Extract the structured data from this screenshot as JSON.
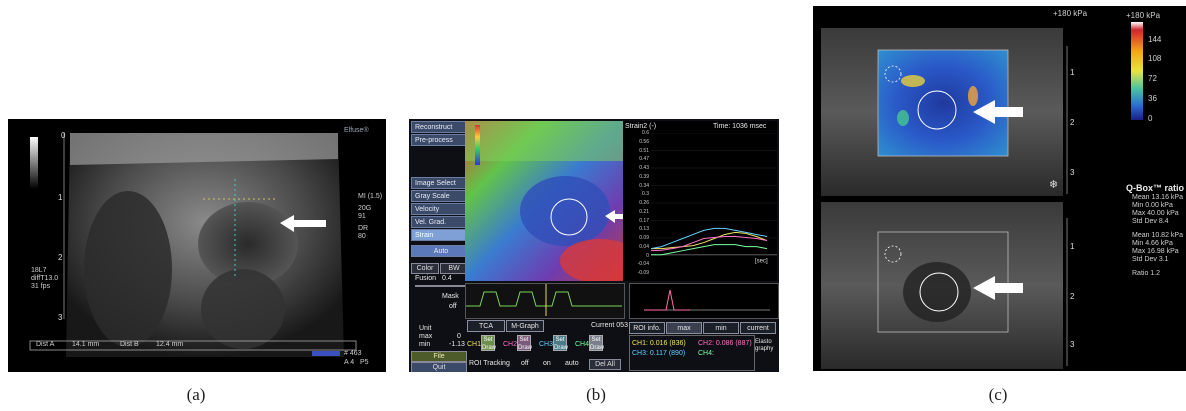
{
  "panel_a": {
    "depth_marks": [
      "0",
      "1",
      "2",
      "3"
    ],
    "right_info": [
      "MI (1.5)",
      "20G",
      "91",
      "DR",
      "80"
    ],
    "left_info": [
      "18L7",
      "diffT13.0",
      "",
      "31 fps"
    ],
    "footer": {
      "dist_a_label": "Dist A",
      "dist_a_value": "14.1 mm",
      "dist_b_label": "Dist B",
      "dist_b_value": "12.4 mm",
      "frame": "# 463",
      "code": "A 4   P5"
    },
    "logo": "Elfuse®",
    "caption": "(a)"
  },
  "panel_b": {
    "menu": {
      "reconstruct": "Reconstruct",
      "preprocess": "Pre-process",
      "image_select": "Image Select",
      "gray_scale": "Gray Scale",
      "velocity": "Velocity",
      "vel_grad": "Vel. Grad.",
      "strain": "Strain",
      "auto": "Auto",
      "color": "Color",
      "bw": "BW",
      "fusion": "Fusion",
      "fusion_val": "0.4",
      "mask": "Mask",
      "off": "off",
      "unit": "Unit",
      "max": "max",
      "max_val": "0",
      "min": "min",
      "min_val": "-1.13",
      "file": "File",
      "quit": "Quit"
    },
    "strain_label": "Strain2 (-)",
    "time_label": "Time: 1036 msec",
    "strain_ticks": [
      "0.6",
      "0.56",
      "0.51",
      "0.47",
      "0.43",
      "0.39",
      "0.34",
      "0.3",
      "0.26",
      "0.21",
      "0.17",
      "0.13",
      "0.09",
      "0.04",
      "0",
      "-0.04",
      "-0.09"
    ],
    "chart_data": {
      "type": "line",
      "ylabel": "Strain2 (-)",
      "xlabel": "[sec]",
      "ylim": [
        -0.09,
        0.6
      ],
      "series": [
        {
          "name": "CH1",
          "color": "#f2e45a",
          "values": [
            0.03,
            0.03,
            0.035,
            0.04,
            0.045,
            0.06,
            0.08,
            0.1,
            0.11,
            0.105,
            0.09,
            0.07
          ]
        },
        {
          "name": "CH2",
          "color": "#ff6fc8",
          "values": [
            0.02,
            0.022,
            0.03,
            0.04,
            0.06,
            0.08,
            0.085,
            0.09,
            0.09,
            0.085,
            0.08,
            0.07
          ]
        },
        {
          "name": "CH3",
          "color": "#63d1ff",
          "values": [
            0.03,
            0.04,
            0.06,
            0.08,
            0.1,
            0.12,
            0.13,
            0.13,
            0.12,
            0.11,
            0.1,
            0.09
          ]
        },
        {
          "name": "CH4",
          "color": "#7cffa0",
          "values": [
            0.0,
            0.0,
            0.01,
            0.02,
            0.03,
            0.04,
            0.05,
            0.05,
            0.05,
            0.04,
            0.04,
            0.03
          ]
        }
      ]
    },
    "tabs": {
      "tca": "TCA",
      "mgraph": "M-Graph",
      "current_label": "Current 053",
      "roi_info": "ROI info.",
      "max": "max",
      "min": "min",
      "current": "current"
    },
    "channels": [
      {
        "ch": "CH1",
        "set": "Set",
        "draw": "Draw"
      },
      {
        "ch": "CH2",
        "set": "Set",
        "draw": "Draw"
      },
      {
        "ch": "CH3",
        "set": "Set",
        "draw": "Draw"
      },
      {
        "ch": "CH4",
        "set": "Set",
        "draw": "Draw"
      }
    ],
    "roi_tracking": "ROI Tracking",
    "opt_off": "off",
    "opt_on": "on",
    "opt_auto": "auto",
    "del_all": "Del All",
    "readout": {
      "ch1": "CH1: 0.016 (836)",
      "ch2": "CH2: 0.086 (887)",
      "ch3": "CH3: 0.117 (890)",
      "ch4": "CH4:"
    },
    "logo": "Elasto graphy",
    "caption": "(b)"
  },
  "panel_c": {
    "scale_max": "+180 kPa",
    "scale_ticks": [
      "144",
      "108",
      "72",
      "36",
      "0"
    ],
    "depth_marks_top": [
      "1",
      "2",
      "3"
    ],
    "depth_marks_bottom": [
      "1",
      "2",
      "3"
    ],
    "qbox_title": "Q-Box™ ratio",
    "stats1": [
      "Mean 13.16 kPa",
      "Min 0.00 kPa",
      "Max 40.00 kPa",
      "Std Dev 8.4"
    ],
    "stats2": [
      "Mean 10.82 kPa",
      "Min 4.66 kPa",
      "Max 16.98 kPa",
      "Std Dev 3.1"
    ],
    "ratio": "Ratio 1.2",
    "caption": "(c)"
  },
  "colors": {
    "arrow": "#ffffff",
    "strain_menu": "#3c4a6a",
    "active_menu": "#7ea0d6"
  }
}
